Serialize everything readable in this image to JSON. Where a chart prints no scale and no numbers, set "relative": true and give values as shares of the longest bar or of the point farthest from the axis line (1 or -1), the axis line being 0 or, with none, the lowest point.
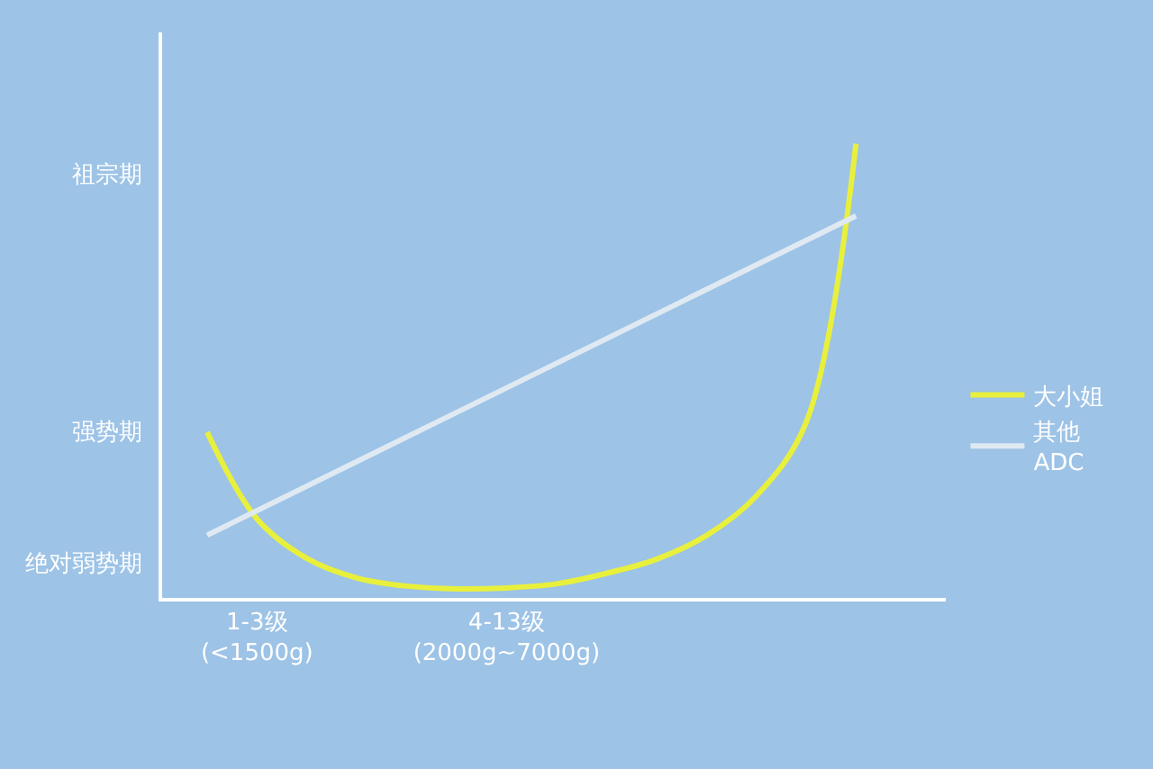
{
  "chart_data": {
    "type": "line",
    "relative": true,
    "categories": [
      null,
      "1-3级\n(<1500g)",
      null,
      null,
      null,
      null,
      "4-13级\n(2000g~7000g)",
      null,
      null,
      null,
      null,
      null,
      null,
      null
    ],
    "series": [
      {
        "name": "大小姐",
        "color": "#e8f03c",
        "values": [
          0.365,
          0.174,
          0.087,
          0.044,
          0.026,
          0.02,
          0.022,
          0.031,
          0.054,
          0.085,
          0.137,
          0.224,
          0.386,
          1
        ]
      },
      {
        "name": "其他\nADC",
        "color": "#dfe9f2",
        "values": [
          0.138,
          null,
          null,
          null,
          null,
          null,
          null,
          null,
          null,
          null,
          null,
          null,
          null,
          0.841
        ]
      }
    ],
    "annotations": [
      "祖宗期",
      "强势期",
      "绝对弱势期"
    ],
    "grid": false,
    "legend": "right",
    "marker": "none",
    "line_style": "solid"
  }
}
